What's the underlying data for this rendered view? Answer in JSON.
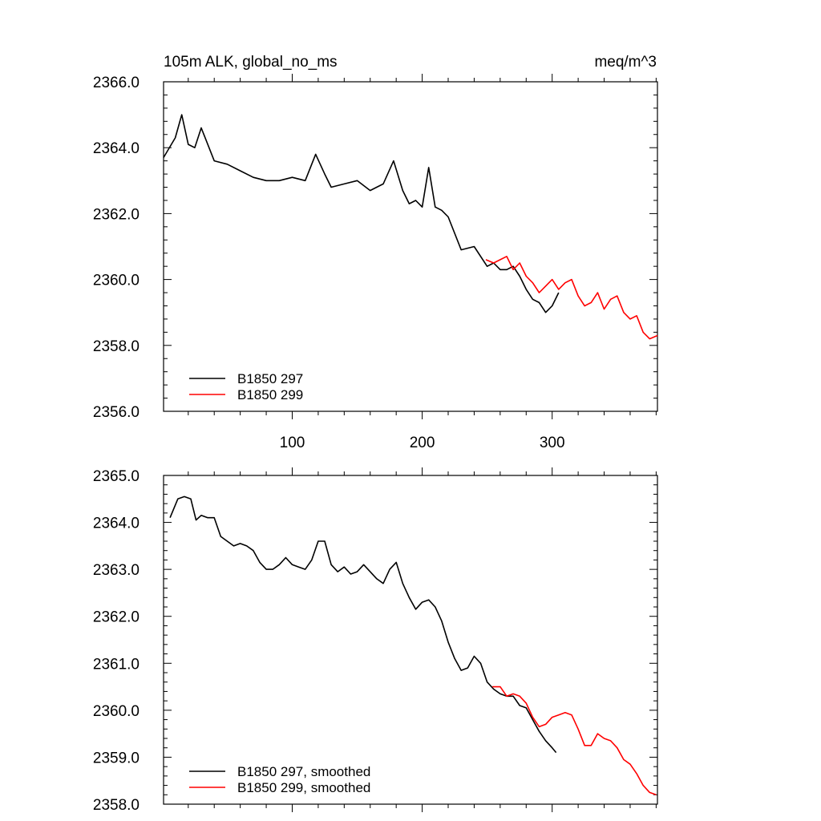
{
  "chart_data": [
    {
      "type": "line",
      "title_left": "105m ALK, global_no_ms",
      "title_right": "meq/m^3",
      "xlim": [
        1,
        381
      ],
      "ylim": [
        2356.0,
        2366.0
      ],
      "yticks": [
        "2356.0",
        "2358.0",
        "2360.0",
        "2362.0",
        "2364.0",
        "2366.0"
      ],
      "xticks": [
        100,
        200,
        300
      ],
      "xtick_labels": [
        "100",
        "200",
        "300"
      ],
      "legend_position": "bottom-left",
      "grid": false,
      "series": [
        {
          "name": "B1850 297",
          "color": "#000000",
          "x": [
            1,
            10,
            15,
            20,
            25,
            30,
            40,
            50,
            60,
            70,
            80,
            90,
            100,
            110,
            118,
            125,
            130,
            140,
            150,
            160,
            170,
            178,
            185,
            190,
            195,
            200,
            205,
            210,
            215,
            220,
            230,
            240,
            250,
            255,
            260,
            265,
            270,
            275,
            280,
            285,
            290,
            295,
            300,
            305
          ],
          "y": [
            2363.7,
            2364.3,
            2365.0,
            2364.1,
            2364.0,
            2364.6,
            2363.6,
            2363.5,
            2363.3,
            2363.1,
            2363.0,
            2363.0,
            2363.1,
            2363.0,
            2363.8,
            2363.2,
            2362.8,
            2362.9,
            2363.0,
            2362.7,
            2362.9,
            2363.6,
            2362.7,
            2362.3,
            2362.4,
            2362.2,
            2363.4,
            2362.2,
            2362.1,
            2361.9,
            2360.9,
            2361.0,
            2360.4,
            2360.5,
            2360.3,
            2360.3,
            2360.4,
            2360.1,
            2359.7,
            2359.4,
            2359.3,
            2359.0,
            2359.2,
            2359.6
          ]
        },
        {
          "name": "B1850 299",
          "color": "#ff0000",
          "x": [
            249,
            255,
            260,
            265,
            270,
            275,
            280,
            285,
            290,
            295,
            300,
            305,
            310,
            315,
            320,
            325,
            330,
            335,
            340,
            345,
            350,
            355,
            360,
            365,
            370,
            375,
            381
          ],
          "y": [
            2360.6,
            2360.5,
            2360.6,
            2360.7,
            2360.3,
            2360.5,
            2360.1,
            2359.9,
            2359.6,
            2359.8,
            2360.0,
            2359.7,
            2359.9,
            2360.0,
            2359.5,
            2359.2,
            2359.3,
            2359.6,
            2359.1,
            2359.4,
            2359.5,
            2359.0,
            2358.8,
            2358.9,
            2358.4,
            2358.2,
            2358.3
          ]
        }
      ]
    },
    {
      "type": "line",
      "xlim": [
        1,
        381
      ],
      "ylim": [
        2358.0,
        2365.0
      ],
      "yticks": [
        "2358.0",
        "2359.0",
        "2360.0",
        "2361.0",
        "2362.0",
        "2363.0",
        "2364.0",
        "2365.0"
      ],
      "xticks": [
        100,
        200,
        300
      ],
      "legend_position": "bottom-left",
      "grid": false,
      "series": [
        {
          "name": "B1850 297, smoothed",
          "color": "#000000",
          "x": [
            6,
            12,
            17,
            22,
            26,
            30,
            35,
            40,
            45,
            50,
            55,
            60,
            65,
            70,
            75,
            80,
            85,
            90,
            95,
            100,
            105,
            110,
            115,
            120,
            125,
            130,
            135,
            140,
            145,
            150,
            155,
            160,
            165,
            170,
            175,
            180,
            185,
            190,
            195,
            200,
            205,
            210,
            215,
            220,
            225,
            230,
            235,
            240,
            245,
            250,
            255,
            260,
            265,
            270,
            275,
            280,
            285,
            290,
            295,
            300,
            303
          ],
          "y": [
            2364.1,
            2364.5,
            2364.55,
            2364.5,
            2364.05,
            2364.15,
            2364.1,
            2364.1,
            2363.7,
            2363.6,
            2363.5,
            2363.55,
            2363.5,
            2363.4,
            2363.15,
            2363.0,
            2363.0,
            2363.1,
            2363.25,
            2363.1,
            2363.05,
            2363.0,
            2363.2,
            2363.6,
            2363.6,
            2363.1,
            2362.95,
            2363.05,
            2362.9,
            2362.95,
            2363.1,
            2362.95,
            2362.8,
            2362.7,
            2363.0,
            2363.15,
            2362.7,
            2362.4,
            2362.15,
            2362.3,
            2362.35,
            2362.2,
            2361.9,
            2361.45,
            2361.1,
            2360.85,
            2360.9,
            2361.15,
            2361.0,
            2360.6,
            2360.45,
            2360.35,
            2360.3,
            2360.3,
            2360.1,
            2360.05,
            2359.8,
            2359.55,
            2359.35,
            2359.2,
            2359.1
          ]
        },
        {
          "name": "B1850 299, smoothed",
          "color": "#ff0000",
          "x": [
            254,
            260,
            265,
            270,
            275,
            280,
            285,
            290,
            295,
            300,
            305,
            310,
            315,
            320,
            325,
            330,
            335,
            340,
            345,
            350,
            355,
            360,
            365,
            370,
            375,
            380
          ],
          "y": [
            2360.5,
            2360.5,
            2360.3,
            2360.35,
            2360.3,
            2360.15,
            2359.85,
            2359.65,
            2359.7,
            2359.85,
            2359.9,
            2359.95,
            2359.9,
            2359.6,
            2359.25,
            2359.25,
            2359.5,
            2359.4,
            2359.35,
            2359.2,
            2358.95,
            2358.85,
            2358.65,
            2358.4,
            2358.25,
            2358.2
          ]
        }
      ]
    }
  ]
}
